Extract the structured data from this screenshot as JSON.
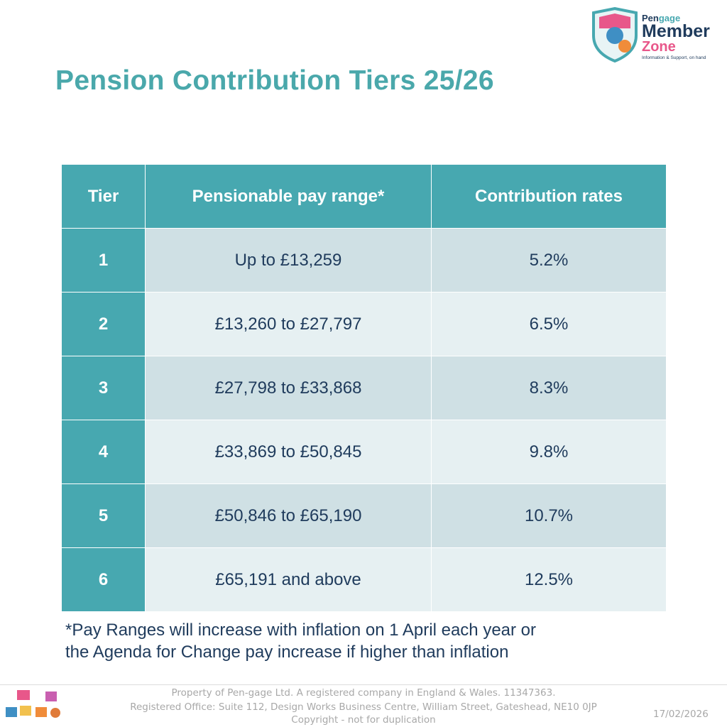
{
  "logo": {
    "brand_left": "Pen",
    "brand_right": "gage",
    "member": "Member",
    "zone": "Zone",
    "tagline": "Information & Support, on hand"
  },
  "header": {
    "title": "Pension Contribution Tiers 25/26"
  },
  "table": {
    "columns": [
      "Tier",
      "Pensionable pay range*",
      "Contribution rates"
    ],
    "rows": [
      [
        "1",
        "Up to £13,259",
        "5.2%"
      ],
      [
        "2",
        "£13,260 to £27,797",
        "6.5%"
      ],
      [
        "3",
        "£27,798 to £33,868",
        "8.3%"
      ],
      [
        "4",
        "£33,869 to £50,845",
        "9.8%"
      ],
      [
        "5",
        "£50,846 to £65,190",
        "10.7%"
      ],
      [
        "6",
        "£65,191 and above",
        "12.5%"
      ]
    ]
  },
  "footnote": [
    "*Pay Ranges will increase with inflation on 1 April each year or",
    "the Agenda for Change pay increase if higher than inflation"
  ],
  "footer": {
    "lines": [
      "Property of Pen-gage Ltd.  A registered company in England & Wales.  11347363.",
      "Registered Office: Suite 112, Design Works Business Centre, William Street, Gateshead, NE10 0JP",
      "Copyright - not for duplication"
    ],
    "date": "17/02/2026"
  }
}
